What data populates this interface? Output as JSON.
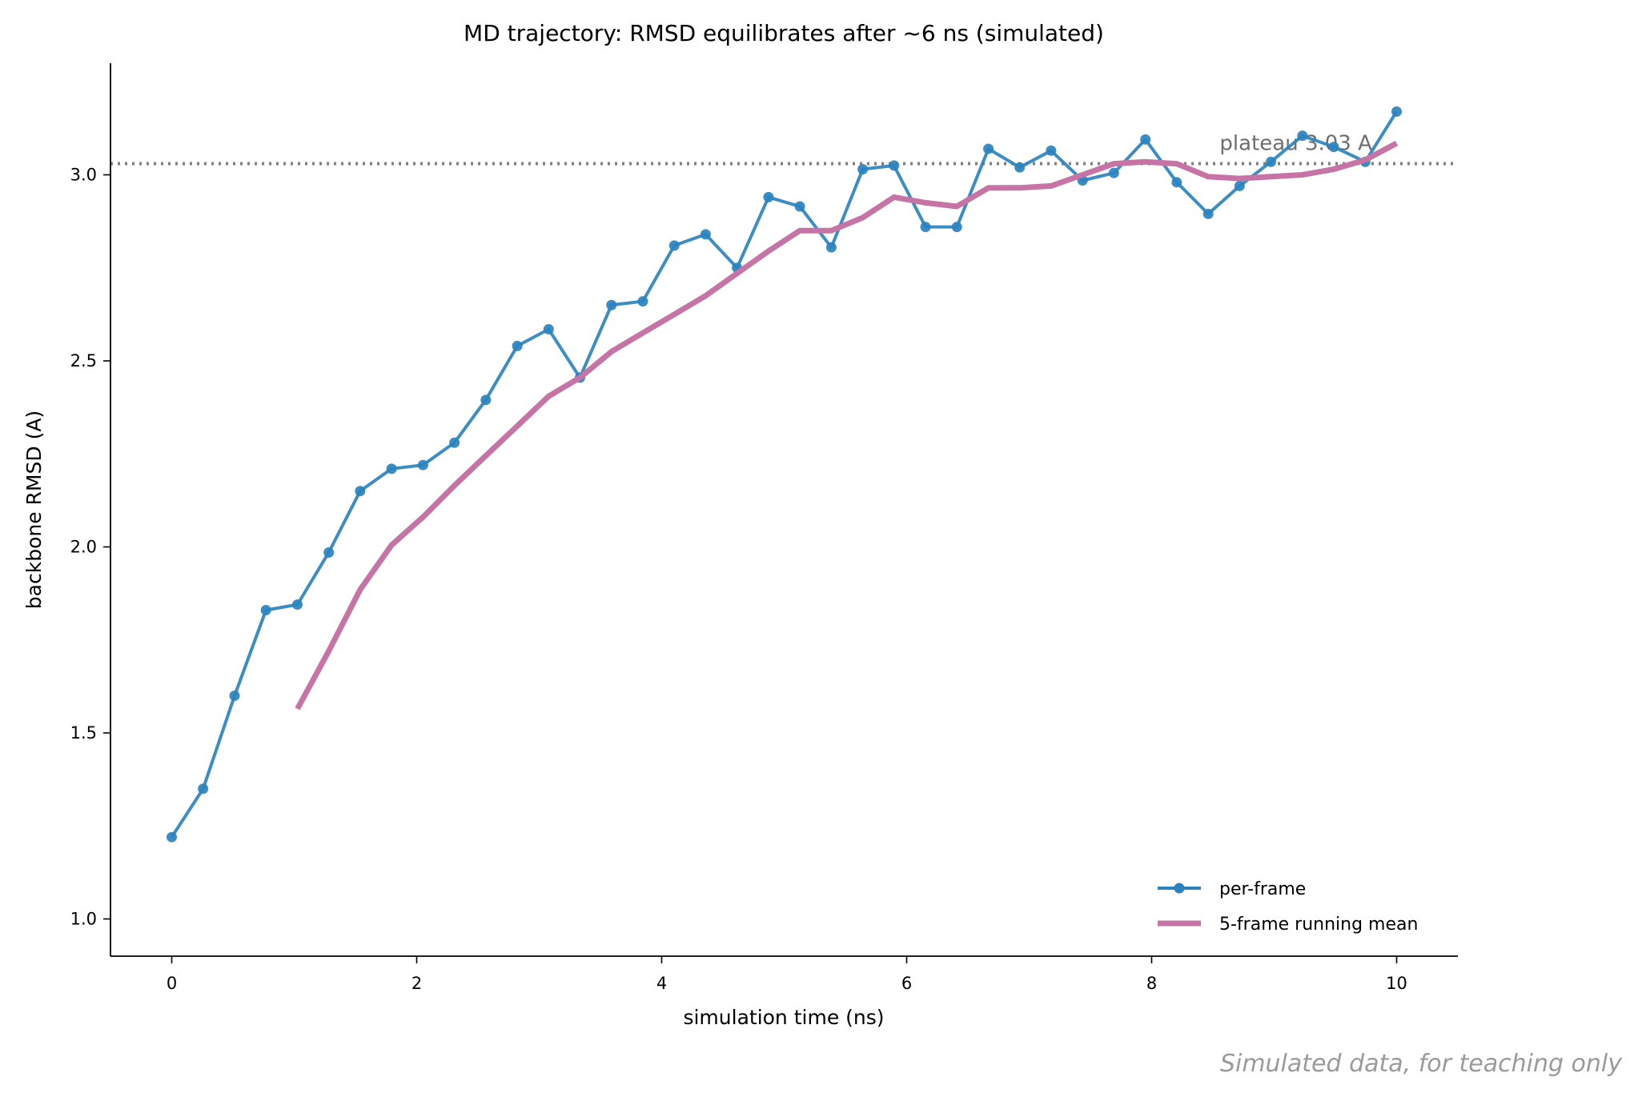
{
  "chart_data": {
    "type": "line",
    "title": "MD trajectory: RMSD equilibrates after ~6 ns (simulated)",
    "xlabel": "simulation time (ns)",
    "ylabel": "backbone RMSD (A)",
    "xlim": [
      -0.5,
      10.5
    ],
    "ylim": [
      0.9,
      3.3
    ],
    "xticks": [
      0,
      2,
      4,
      6,
      8,
      10
    ],
    "xtick_labels": [
      "0",
      "2",
      "4",
      "6",
      "8",
      "10"
    ],
    "yticks": [
      1.0,
      1.5,
      2.0,
      2.5,
      3.0
    ],
    "ytick_labels": [
      "1.0",
      "1.5",
      "2.0",
      "2.5",
      "3.0"
    ],
    "grid": false,
    "legend_position": "lower-right",
    "series": [
      {
        "name": "per-frame",
        "color": "#2b83be",
        "marker": "circle",
        "x": [
          0.0,
          0.256,
          0.513,
          0.769,
          1.026,
          1.282,
          1.538,
          1.795,
          2.051,
          2.308,
          2.564,
          2.821,
          3.077,
          3.333,
          3.59,
          3.846,
          4.103,
          4.359,
          4.615,
          4.872,
          5.128,
          5.385,
          5.641,
          5.897,
          6.154,
          6.41,
          6.667,
          6.923,
          7.179,
          7.436,
          7.692,
          7.949,
          8.205,
          8.462,
          8.718,
          8.974,
          9.231,
          9.487,
          9.744,
          10.0
        ],
        "y": [
          1.22,
          1.35,
          1.6,
          1.83,
          1.845,
          1.985,
          2.15,
          2.21,
          2.22,
          2.28,
          2.395,
          2.54,
          2.585,
          2.455,
          2.65,
          2.66,
          2.81,
          2.84,
          2.75,
          2.94,
          2.915,
          2.805,
          3.015,
          3.025,
          2.86,
          2.86,
          3.07,
          3.02,
          3.065,
          2.985,
          3.005,
          3.095,
          2.98,
          2.895,
          2.97,
          3.035,
          3.105,
          3.075,
          3.035,
          3.17
        ]
      },
      {
        "name": "5-frame running mean",
        "color": "#c674a5",
        "marker": "none",
        "x": [
          1.026,
          1.282,
          1.538,
          1.795,
          2.051,
          2.308,
          2.564,
          2.821,
          3.077,
          3.333,
          3.59,
          3.846,
          4.103,
          4.359,
          4.615,
          4.872,
          5.128,
          5.385,
          5.641,
          5.897,
          6.154,
          6.41,
          6.667,
          6.923,
          7.179,
          7.436,
          7.692,
          7.949,
          8.205,
          8.462,
          8.718,
          8.974,
          9.231,
          9.487,
          9.744,
          10.0
        ],
        "y": [
          1.565,
          1.72,
          1.885,
          2.005,
          2.08,
          2.165,
          2.245,
          2.325,
          2.405,
          2.455,
          2.525,
          2.575,
          2.625,
          2.675,
          2.735,
          2.795,
          2.85,
          2.85,
          2.885,
          2.94,
          2.925,
          2.915,
          2.965,
          2.965,
          2.97,
          3.0,
          3.03,
          3.035,
          3.03,
          2.995,
          2.99,
          2.995,
          3.0,
          3.015,
          3.04,
          3.085
        ]
      }
    ],
    "reference_line": {
      "y": 3.03,
      "style": "dotted",
      "color": "#808080",
      "label": "plateau 3.03 A"
    },
    "footnote": "Simulated data, for teaching only"
  }
}
